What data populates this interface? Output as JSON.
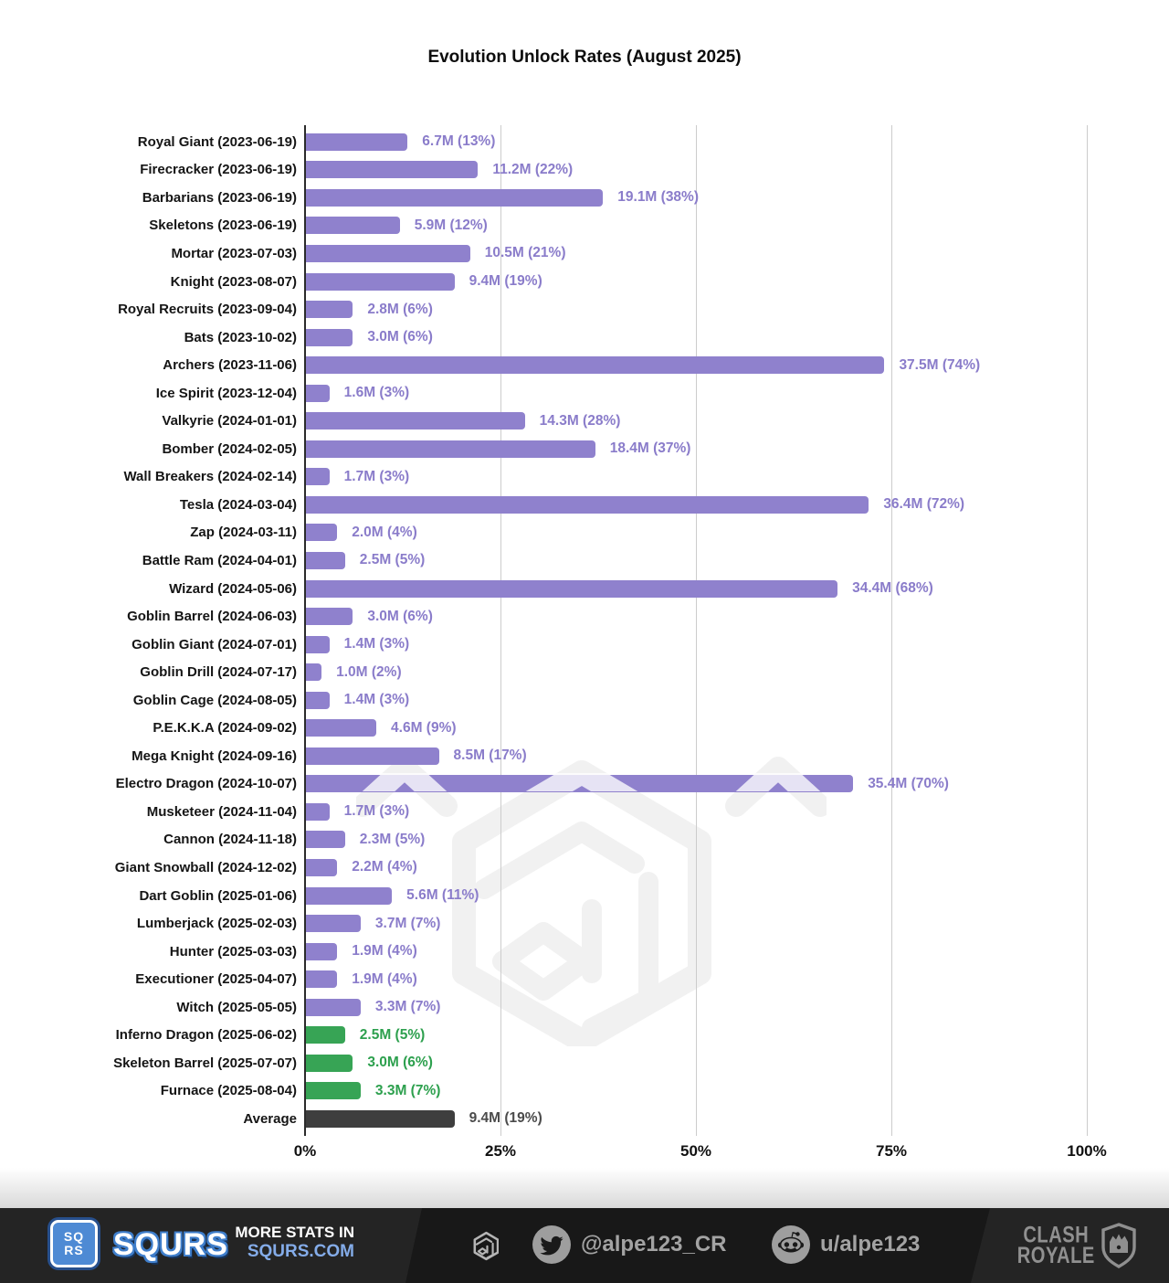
{
  "chart_data": {
    "type": "bar",
    "orientation": "horizontal",
    "title": "Evolution Unlock Rates (August 2025)",
    "x_ticks": [
      "0%",
      "25%",
      "50%",
      "75%",
      "100%"
    ],
    "xlim_percent": [
      0,
      100
    ],
    "grid": true,
    "bars": [
      {
        "label": "Royal Giant (2023-06-19)",
        "value_label": "6.7M (13%)",
        "unlocks_millions": 6.7,
        "percent": 13,
        "group": "evolution"
      },
      {
        "label": "Firecracker (2023-06-19)",
        "value_label": "11.2M (22%)",
        "unlocks_millions": 11.2,
        "percent": 22,
        "group": "evolution"
      },
      {
        "label": "Barbarians (2023-06-19)",
        "value_label": "19.1M (38%)",
        "unlocks_millions": 19.1,
        "percent": 38,
        "group": "evolution"
      },
      {
        "label": "Skeletons (2023-06-19)",
        "value_label": "5.9M (12%)",
        "unlocks_millions": 5.9,
        "percent": 12,
        "group": "evolution"
      },
      {
        "label": "Mortar (2023-07-03)",
        "value_label": "10.5M (21%)",
        "unlocks_millions": 10.5,
        "percent": 21,
        "group": "evolution"
      },
      {
        "label": "Knight (2023-08-07)",
        "value_label": "9.4M (19%)",
        "unlocks_millions": 9.4,
        "percent": 19,
        "group": "evolution"
      },
      {
        "label": "Royal Recruits (2023-09-04)",
        "value_label": "2.8M (6%)",
        "unlocks_millions": 2.8,
        "percent": 6,
        "group": "evolution"
      },
      {
        "label": "Bats (2023-10-02)",
        "value_label": "3.0M (6%)",
        "unlocks_millions": 3.0,
        "percent": 6,
        "group": "evolution"
      },
      {
        "label": "Archers (2023-11-06)",
        "value_label": "37.5M (74%)",
        "unlocks_millions": 37.5,
        "percent": 74,
        "group": "evolution"
      },
      {
        "label": "Ice Spirit (2023-12-04)",
        "value_label": "1.6M (3%)",
        "unlocks_millions": 1.6,
        "percent": 3,
        "group": "evolution"
      },
      {
        "label": "Valkyrie (2024-01-01)",
        "value_label": "14.3M (28%)",
        "unlocks_millions": 14.3,
        "percent": 28,
        "group": "evolution"
      },
      {
        "label": "Bomber (2024-02-05)",
        "value_label": "18.4M (37%)",
        "unlocks_millions": 18.4,
        "percent": 37,
        "group": "evolution"
      },
      {
        "label": "Wall Breakers (2024-02-14)",
        "value_label": "1.7M (3%)",
        "unlocks_millions": 1.7,
        "percent": 3,
        "group": "evolution"
      },
      {
        "label": "Tesla (2024-03-04)",
        "value_label": "36.4M (72%)",
        "unlocks_millions": 36.4,
        "percent": 72,
        "group": "evolution"
      },
      {
        "label": "Zap (2024-03-11)",
        "value_label": "2.0M (4%)",
        "unlocks_millions": 2.0,
        "percent": 4,
        "group": "evolution"
      },
      {
        "label": "Battle Ram (2024-04-01)",
        "value_label": "2.5M (5%)",
        "unlocks_millions": 2.5,
        "percent": 5,
        "group": "evolution"
      },
      {
        "label": "Wizard (2024-05-06)",
        "value_label": "34.4M (68%)",
        "unlocks_millions": 34.4,
        "percent": 68,
        "group": "evolution"
      },
      {
        "label": "Goblin Barrel (2024-06-03)",
        "value_label": "3.0M (6%)",
        "unlocks_millions": 3.0,
        "percent": 6,
        "group": "evolution"
      },
      {
        "label": "Goblin Giant (2024-07-01)",
        "value_label": "1.4M (3%)",
        "unlocks_millions": 1.4,
        "percent": 3,
        "group": "evolution"
      },
      {
        "label": "Goblin Drill (2024-07-17)",
        "value_label": "1.0M (2%)",
        "unlocks_millions": 1.0,
        "percent": 2,
        "group": "evolution"
      },
      {
        "label": "Goblin Cage (2024-08-05)",
        "value_label": "1.4M (3%)",
        "unlocks_millions": 1.4,
        "percent": 3,
        "group": "evolution"
      },
      {
        "label": "P.E.K.K.A (2024-09-02)",
        "value_label": "4.6M (9%)",
        "unlocks_millions": 4.6,
        "percent": 9,
        "group": "evolution"
      },
      {
        "label": "Mega Knight (2024-09-16)",
        "value_label": "8.5M (17%)",
        "unlocks_millions": 8.5,
        "percent": 17,
        "group": "evolution"
      },
      {
        "label": "Electro Dragon (2024-10-07)",
        "value_label": "35.4M (70%)",
        "unlocks_millions": 35.4,
        "percent": 70,
        "group": "evolution"
      },
      {
        "label": "Musketeer (2024-11-04)",
        "value_label": "1.7M (3%)",
        "unlocks_millions": 1.7,
        "percent": 3,
        "group": "evolution"
      },
      {
        "label": "Cannon (2024-11-18)",
        "value_label": "2.3M (5%)",
        "unlocks_millions": 2.3,
        "percent": 5,
        "group": "evolution"
      },
      {
        "label": "Giant Snowball (2024-12-02)",
        "value_label": "2.2M (4%)",
        "unlocks_millions": 2.2,
        "percent": 4,
        "group": "evolution"
      },
      {
        "label": "Dart Goblin (2025-01-06)",
        "value_label": "5.6M (11%)",
        "unlocks_millions": 5.6,
        "percent": 11,
        "group": "evolution"
      },
      {
        "label": "Lumberjack (2025-02-03)",
        "value_label": "3.7M (7%)",
        "unlocks_millions": 3.7,
        "percent": 7,
        "group": "evolution"
      },
      {
        "label": "Hunter (2025-03-03)",
        "value_label": "1.9M (4%)",
        "unlocks_millions": 1.9,
        "percent": 4,
        "group": "evolution"
      },
      {
        "label": "Executioner (2025-04-07)",
        "value_label": "1.9M (4%)",
        "unlocks_millions": 1.9,
        "percent": 4,
        "group": "evolution"
      },
      {
        "label": "Witch (2025-05-05)",
        "value_label": "3.3M (7%)",
        "unlocks_millions": 3.3,
        "percent": 7,
        "group": "evolution"
      },
      {
        "label": "Inferno Dragon (2025-06-02)",
        "value_label": "2.5M (5%)",
        "unlocks_millions": 2.5,
        "percent": 5,
        "group": "recent"
      },
      {
        "label": "Skeleton Barrel (2025-07-07)",
        "value_label": "3.0M (6%)",
        "unlocks_millions": 3.0,
        "percent": 6,
        "group": "recent"
      },
      {
        "label": "Furnace (2025-08-04)",
        "value_label": "3.3M (7%)",
        "unlocks_millions": 3.3,
        "percent": 7,
        "group": "recent"
      },
      {
        "label": "Average",
        "value_label": "9.4M (19%)",
        "unlocks_millions": 9.4,
        "percent": 19,
        "group": "average"
      }
    ],
    "colors": {
      "evolution": "#8f81cd",
      "evolution_text": "#8a7cca",
      "recent": "#37a455",
      "recent_text": "#2da04e",
      "average": "#3e3e3e",
      "average_text": "#4b4b4b",
      "gridline": "#cccccc",
      "axis": "#2b2b2b"
    }
  },
  "footer": {
    "brand": {
      "logo_line1": "SQ",
      "logo_line2": "RS",
      "wordmark": "SQURS",
      "tagline_line1": "MORE STATS IN",
      "tagline_line2": "SQURS.COM"
    },
    "social": {
      "twitter_handle": "@alpe123_CR",
      "reddit_handle": "u/alpe123"
    },
    "game_logo": {
      "line1": "CLASH",
      "line2": "ROYALE"
    },
    "icons": [
      "squrs-hexagon-icon",
      "twitter-icon",
      "reddit-icon",
      "clash-royale-shield-icon"
    ],
    "colors": {
      "bg_dark": "#181818",
      "bg_light": "#242424",
      "accent_blue": "#4e8ad4",
      "link_blue": "#84ace9",
      "icon_gray": "#9e9e9e"
    }
  }
}
